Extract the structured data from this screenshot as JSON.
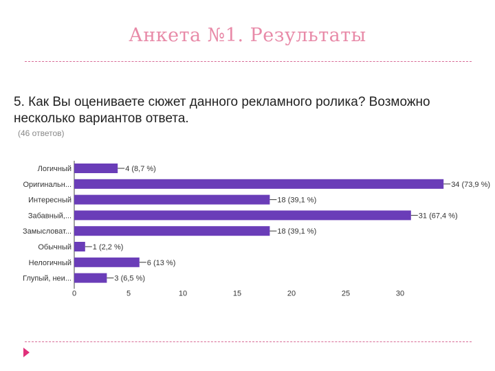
{
  "slide": {
    "title": "Анкета №1. Результаты"
  },
  "question": {
    "text": "5. Как Вы оцениваете сюжет данного рекламного ролика? Возможно несколько вариантов ответа.",
    "responses": "(46 ответов)"
  },
  "colors": {
    "bar": "#6a3db8",
    "title": "#e88aa8",
    "divider": "#d86a95",
    "arrow": "#e0307a"
  },
  "chart_data": {
    "type": "bar",
    "orientation": "horizontal",
    "categories": [
      "Логичный",
      "Оригинальн...",
      "Интересный",
      "Забавный,...",
      "Замысловат...",
      "Обычный",
      "Нелогичный",
      "Глупый, неи..."
    ],
    "values": [
      4,
      34,
      18,
      31,
      18,
      1,
      6,
      3
    ],
    "data_labels": [
      "4 (8,7 %)",
      "34 (73,9 %)",
      "18 (39,1 %)",
      "31 (67,4 %)",
      "18 (39,1 %)",
      "1 (2,2 %)",
      "6 (13 %)",
      "3 (6,5 %)"
    ],
    "x_ticks": [
      0,
      5,
      10,
      15,
      20,
      25,
      30
    ],
    "xlim": [
      0,
      34
    ],
    "grid": false,
    "legend": "none"
  }
}
